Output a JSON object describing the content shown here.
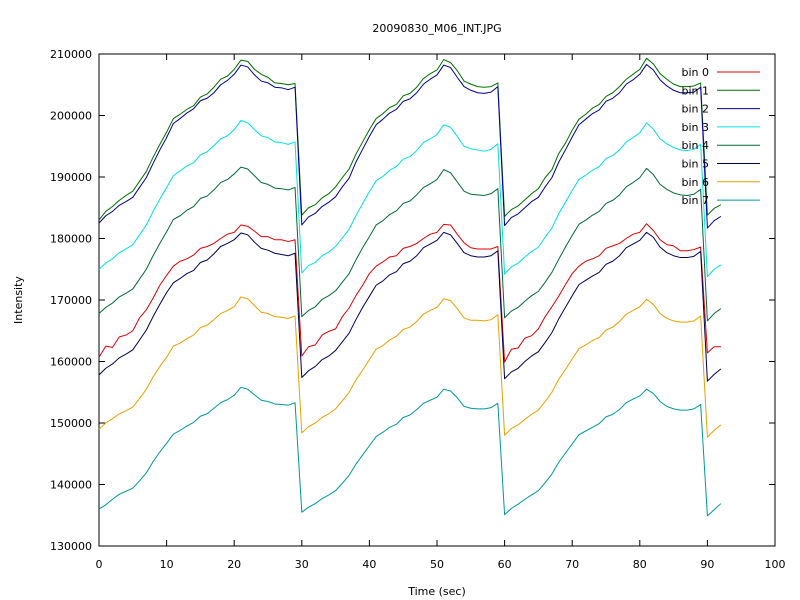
{
  "chart_data": {
    "type": "line",
    "title": "20090830_M06_INT.JPG",
    "xlabel": "Time (sec)",
    "ylabel": "Intensity",
    "xlim": [
      0,
      100
    ],
    "ylim": [
      130000,
      210000
    ],
    "x_ticks": [
      "0",
      "10",
      "20",
      "30",
      "40",
      "50",
      "60",
      "70",
      "80",
      "90",
      "100"
    ],
    "y_ticks": [
      "130000",
      "140000",
      "150000",
      "160000",
      "170000",
      "180000",
      "190000",
      "200000",
      "210000"
    ],
    "grid": false,
    "legend_position": "top-right",
    "x": [
      0,
      1,
      2,
      3,
      4,
      5,
      6,
      7,
      8,
      9,
      10,
      11,
      12,
      13,
      14,
      15,
      16,
      17,
      18,
      19,
      20,
      21,
      22,
      23,
      24,
      25,
      26,
      27,
      28,
      29,
      30,
      31,
      32,
      33,
      34,
      35,
      36,
      37,
      38,
      39,
      40,
      41,
      42,
      43,
      44,
      45,
      46,
      47,
      48,
      49,
      50,
      51,
      52,
      53,
      54,
      55,
      56,
      57,
      58,
      59,
      60,
      61,
      62,
      63,
      64,
      65,
      66,
      67,
      68,
      69,
      70,
      71,
      72,
      73,
      74,
      75,
      76,
      77,
      78,
      79,
      80,
      81,
      82,
      83,
      84,
      85,
      86,
      87,
      88,
      89,
      90,
      91,
      92
    ],
    "series": [
      {
        "name": "bin 0",
        "color": "#e00000",
        "values": [
          160700,
          162500,
          162300,
          164000,
          164300,
          165000,
          167100,
          168400,
          170300,
          172400,
          174000,
          175500,
          176300,
          176700,
          177300,
          178400,
          178700,
          179200,
          180000,
          180700,
          181000,
          182200,
          182000,
          181200,
          180300,
          180300,
          179800,
          179800,
          179500,
          179800,
          160900,
          162400,
          162700,
          164300,
          164900,
          165300,
          167300,
          168700,
          170700,
          172400,
          174300,
          175500,
          176200,
          177000,
          177200,
          178400,
          178700,
          179200,
          180000,
          180700,
          181000,
          182300,
          182200,
          180700,
          179300,
          178500,
          178300,
          178300,
          178300,
          178700,
          159900,
          162000,
          162200,
          163800,
          164200,
          165300,
          167300,
          168900,
          170600,
          172500,
          174300,
          175500,
          176300,
          176700,
          177200,
          178400,
          178800,
          179200,
          180000,
          180700,
          181000,
          182400,
          181300,
          179800,
          179000,
          178800,
          178000,
          178000,
          178200,
          178600,
          161400,
          162400,
          162400
        ]
      },
      {
        "name": "bin 1",
        "color": "#007000",
        "values": [
          183000,
          184400,
          185200,
          186200,
          187000,
          187700,
          189300,
          190900,
          193200,
          195300,
          197300,
          199500,
          200200,
          201000,
          201600,
          203000,
          203500,
          204600,
          205900,
          206400,
          207500,
          209000,
          208800,
          207500,
          206700,
          206200,
          205300,
          205200,
          205000,
          205200,
          183800,
          185000,
          185500,
          186600,
          187300,
          188400,
          189900,
          191300,
          193700,
          195700,
          197700,
          199500,
          200300,
          201300,
          201800,
          203200,
          203600,
          204600,
          206000,
          206800,
          207400,
          209100,
          208600,
          207300,
          205600,
          205100,
          204700,
          204600,
          204700,
          205300,
          183600,
          184700,
          185300,
          186300,
          187300,
          188100,
          189900,
          191200,
          193800,
          195500,
          197600,
          199400,
          200200,
          201200,
          201800,
          203100,
          203700,
          204700,
          205900,
          206700,
          207500,
          209300,
          208400,
          206800,
          205900,
          205100,
          204700,
          204700,
          204800,
          205300,
          183800,
          184900,
          185500
        ]
      },
      {
        "name": "bin 2",
        "color": "#000090",
        "values": [
          182500,
          183700,
          184400,
          185400,
          186000,
          186700,
          188300,
          189900,
          192200,
          194400,
          196400,
          198700,
          199500,
          200400,
          201100,
          202400,
          202800,
          203700,
          205000,
          205700,
          206700,
          208200,
          207900,
          206600,
          205600,
          205300,
          204600,
          204500,
          204200,
          204600,
          182200,
          183500,
          184100,
          185200,
          185900,
          186800,
          188400,
          189800,
          192400,
          194500,
          196600,
          198500,
          199400,
          200400,
          201000,
          202300,
          202700,
          203700,
          205100,
          205900,
          206600,
          208200,
          207800,
          206200,
          204700,
          204100,
          203700,
          203600,
          203800,
          204700,
          182100,
          183400,
          184000,
          185000,
          186000,
          186700,
          188400,
          189900,
          192400,
          194400,
          196500,
          198500,
          199400,
          200300,
          200900,
          202300,
          202800,
          203700,
          205100,
          205800,
          206700,
          208300,
          207400,
          205800,
          204800,
          204100,
          203700,
          203700,
          203800,
          204600,
          181700,
          182900,
          183600
        ]
      },
      {
        "name": "bin 3",
        "color": "#00e0e0",
        "values": [
          175000,
          176000,
          176700,
          177700,
          178300,
          179000,
          180600,
          182200,
          184400,
          186400,
          188300,
          190200,
          191000,
          191800,
          192300,
          193600,
          194100,
          195100,
          196200,
          196700,
          197700,
          199200,
          198800,
          197700,
          196700,
          196400,
          195700,
          195600,
          195300,
          195700,
          174400,
          175600,
          176100,
          177200,
          177800,
          178700,
          180100,
          181500,
          183700,
          185700,
          187600,
          189400,
          190100,
          191100,
          191700,
          192900,
          193300,
          194300,
          195600,
          196200,
          196900,
          198500,
          198100,
          196600,
          195000,
          194600,
          194400,
          194200,
          194500,
          195400,
          174200,
          175400,
          176000,
          177000,
          177900,
          178600,
          180200,
          181700,
          184000,
          185900,
          187800,
          189600,
          190300,
          191100,
          191700,
          193000,
          193500,
          194400,
          195700,
          196400,
          197200,
          198800,
          197800,
          196200,
          195400,
          194800,
          194400,
          194300,
          194500,
          195300,
          173800,
          175000,
          175700
        ]
      },
      {
        "name": "bin 4",
        "color": "#006838",
        "values": [
          167800,
          168800,
          169500,
          170500,
          171100,
          171800,
          173400,
          175000,
          177200,
          179200,
          181100,
          183100,
          183700,
          184600,
          185200,
          186500,
          186900,
          187900,
          189100,
          189600,
          190500,
          191600,
          191300,
          190200,
          189100,
          188800,
          188200,
          188100,
          187900,
          188300,
          167300,
          168300,
          168900,
          170100,
          170700,
          171500,
          172900,
          174300,
          176500,
          178500,
          180300,
          182200,
          182900,
          183900,
          184500,
          185700,
          186100,
          187100,
          188300,
          188900,
          189600,
          191200,
          190700,
          189200,
          187700,
          187200,
          187100,
          187000,
          187300,
          188100,
          167100,
          168200,
          168800,
          169800,
          170700,
          171400,
          172900,
          174500,
          176600,
          178600,
          180500,
          182300,
          183000,
          183800,
          184400,
          185700,
          186200,
          187100,
          188400,
          189100,
          189900,
          191400,
          190400,
          188800,
          188000,
          187400,
          187100,
          187000,
          187200,
          188000,
          166600,
          167800,
          168600
        ]
      },
      {
        "name": "bin 5",
        "color": "#000050",
        "values": [
          157800,
          158900,
          159600,
          160600,
          161200,
          161900,
          163500,
          165100,
          167300,
          169300,
          171200,
          172800,
          173500,
          174300,
          174800,
          176100,
          176500,
          177500,
          178700,
          179200,
          179800,
          180900,
          180600,
          179400,
          178400,
          178100,
          177600,
          177400,
          177200,
          177600,
          157400,
          158500,
          159200,
          160300,
          160900,
          161800,
          163200,
          164600,
          166800,
          168800,
          170600,
          172400,
          173100,
          174100,
          174600,
          175900,
          176300,
          177200,
          178500,
          179100,
          179700,
          181000,
          180600,
          179200,
          177700,
          177200,
          177000,
          177000,
          177200,
          178000,
          157200,
          158300,
          158900,
          160000,
          160900,
          161600,
          163100,
          164700,
          166900,
          168800,
          170700,
          172500,
          173200,
          173900,
          174500,
          175800,
          176300,
          177200,
          178500,
          179100,
          179700,
          181000,
          180200,
          178600,
          177700,
          177200,
          176900,
          176900,
          177100,
          177900,
          156800,
          157900,
          158800
        ]
      },
      {
        "name": "bin 6",
        "color": "#e8a000",
        "values": [
          149000,
          150000,
          150700,
          151500,
          152000,
          152600,
          154000,
          155500,
          157500,
          159200,
          160700,
          162500,
          163000,
          163700,
          164300,
          165500,
          165900,
          166800,
          167800,
          168300,
          168900,
          170500,
          170200,
          169100,
          168000,
          167800,
          167300,
          167200,
          167000,
          167400,
          148400,
          149400,
          150000,
          150900,
          151500,
          152300,
          153600,
          155000,
          157000,
          158600,
          160300,
          162000,
          162600,
          163500,
          164100,
          165200,
          165600,
          166500,
          167700,
          168300,
          168800,
          170200,
          169900,
          168600,
          167100,
          166700,
          166700,
          166600,
          166800,
          167600,
          148000,
          149100,
          149700,
          150600,
          151400,
          152100,
          153500,
          155000,
          157100,
          158700,
          160400,
          162100,
          162700,
          163400,
          163900,
          165100,
          165600,
          166500,
          167700,
          168300,
          168900,
          170100,
          169300,
          167800,
          167000,
          166600,
          166400,
          166400,
          166600,
          167400,
          147700,
          148800,
          149700
        ]
      },
      {
        "name": "bin 7",
        "color": "#009898",
        "values": [
          136000,
          136700,
          137600,
          138400,
          138900,
          139400,
          140600,
          141900,
          143700,
          145300,
          146700,
          148200,
          148800,
          149500,
          150100,
          151100,
          151500,
          152400,
          153300,
          153800,
          154500,
          155800,
          155500,
          154600,
          153700,
          153500,
          153100,
          153000,
          152900,
          153300,
          135500,
          136300,
          136900,
          137700,
          138300,
          139000,
          140200,
          141500,
          143300,
          144800,
          146300,
          147800,
          148500,
          149300,
          149800,
          150900,
          151300,
          152200,
          153200,
          153700,
          154200,
          155500,
          155200,
          154100,
          152700,
          152400,
          152300,
          152300,
          152500,
          153200,
          135100,
          136100,
          136800,
          137600,
          138300,
          139000,
          140300,
          141700,
          143600,
          145100,
          146600,
          148100,
          148700,
          149300,
          149900,
          151000,
          151400,
          152200,
          153300,
          153900,
          154400,
          155500,
          154800,
          153500,
          152700,
          152300,
          152100,
          152100,
          152300,
          153000,
          134900,
          135900,
          136900
        ]
      }
    ]
  }
}
